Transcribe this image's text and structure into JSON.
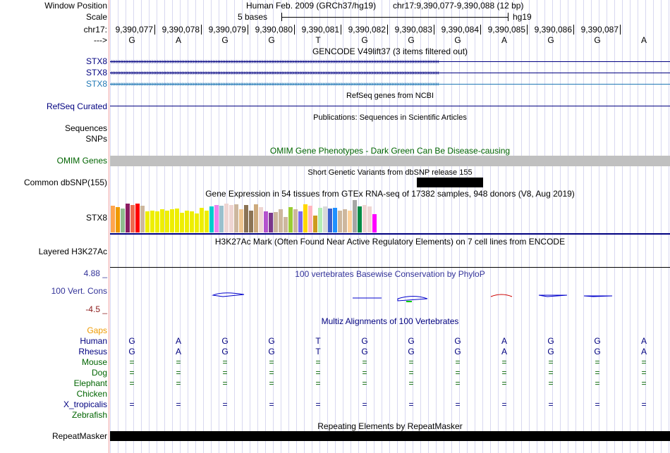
{
  "header": {
    "assembly": "Human Feb. 2009 (GRCh37/hg19)",
    "position": "chr17:9,390,077-9,390,088 (12 bp)",
    "scale_label": "5 bases",
    "scale_db": "hg19",
    "chrom": "chr17:",
    "strand": "--->"
  },
  "left_labels": {
    "window_position": "Window Position",
    "scale": "Scale",
    "stx8_a": "STX8",
    "stx8_b": "STX8",
    "stx8_c": "STX8",
    "refseq": "RefSeq Curated",
    "sequences": "Sequences",
    "snps": "SNPs",
    "omim": "OMIM Genes",
    "dbsnp": "Common dbSNP(155)",
    "gtex": "STX8",
    "h3k27ac": "Layered H3K27Ac",
    "cons": "100 Vert. Cons",
    "cons_max": "4.88 _",
    "cons_min": "-4.5 _",
    "gaps": "Gaps",
    "repeat": "RepeatMasker"
  },
  "coords": [
    "9,390,077",
    "9,390,078",
    "9,390,079",
    "9,390,080",
    "9,390,081",
    "9,390,082",
    "9,390,083",
    "9,390,084",
    "9,390,085",
    "9,390,086",
    "9,390,087"
  ],
  "bases": [
    "G",
    "A",
    "G",
    "G",
    "T",
    "G",
    "G",
    "G",
    "A",
    "G",
    "G",
    "A"
  ],
  "track_titles": {
    "gencode": "GENCODE V49lift37 (3 items filtered out)",
    "refseq": "RefSeq genes from NCBI",
    "pubs": "Publications: Sequences in Scientific Articles",
    "omim": "OMIM Gene Phenotypes - Dark Green Can Be Disease-causing",
    "dbsnp": "Short Genetic Variants from dbSNP release 155",
    "gtex": "Gene Expression in 54 tissues from GTEx RNA-seq of 17382 samples, 948 donors (V8, Aug 2019)",
    "h3k27ac": "H3K27Ac Mark (Often Found Near Active Regulatory Elements) on 7 cell lines from ENCODE",
    "cons": "100 vertebrates Basewise Conservation by PhyloP",
    "multiz": "Multiz Alignments of 100 Vertebrates",
    "repeat": "Repeating Elements by RepeatMasker"
  },
  "species": [
    {
      "name": "Human",
      "color": "#000080",
      "seq": [
        "G",
        "A",
        "G",
        "G",
        "T",
        "G",
        "G",
        "G",
        "A",
        "G",
        "G",
        "A"
      ]
    },
    {
      "name": "Rhesus",
      "color": "#000080",
      "seq": [
        "G",
        "A",
        "G",
        "G",
        "T",
        "G",
        "G",
        "G",
        "A",
        "G",
        "G",
        "A"
      ]
    },
    {
      "name": "Mouse",
      "color": "#006400",
      "seq": [
        "=",
        "=",
        "=",
        "=",
        "=",
        "=",
        "=",
        "=",
        "=",
        "=",
        "=",
        "="
      ]
    },
    {
      "name": "Dog",
      "color": "#006400",
      "seq": [
        "=",
        "=",
        "=",
        "=",
        "=",
        "=",
        "=",
        "=",
        "=",
        "=",
        "=",
        "="
      ]
    },
    {
      "name": "Elephant",
      "color": "#006400",
      "seq": [
        "=",
        "=",
        "=",
        "=",
        "=",
        "=",
        "=",
        "=",
        "=",
        "=",
        "=",
        "="
      ]
    },
    {
      "name": "Chicken",
      "color": "#006400",
      "seq": []
    },
    {
      "name": "X_tropicalis",
      "color": "#000080",
      "seq": [
        "=",
        "=",
        "=",
        "=",
        "=",
        "=",
        "=",
        "=",
        "=",
        "=",
        "=",
        "="
      ]
    },
    {
      "name": "Zebrafish",
      "color": "#006400",
      "seq": []
    }
  ],
  "gtex": {
    "heights": [
      38,
      36,
      34,
      41,
      39,
      41,
      38,
      30,
      31,
      30,
      33,
      31,
      33,
      34,
      28,
      31,
      30,
      27,
      35,
      31,
      37,
      39,
      38,
      41,
      39,
      40,
      33,
      39,
      31,
      40,
      36,
      30,
      28,
      29,
      33,
      22,
      36,
      33,
      30,
      40,
      38,
      24,
      35,
      37,
      34,
      35,
      31,
      33,
      31,
      46,
      37,
      39,
      37,
      26
    ],
    "colors": [
      "#FFA54F",
      "#EE9A00",
      "#8FBC8F",
      "#8B1C62",
      "#EE6A50",
      "#FF0000",
      "#CDB79E",
      "#EEEE00",
      "#EEEE00",
      "#EEEE00",
      "#EEEE00",
      "#EEEE00",
      "#EEEE00",
      "#EEEE00",
      "#EEEE00",
      "#EEEE00",
      "#EEEE00",
      "#EEEE00",
      "#EEEE00",
      "#EEEE00",
      "#00CDCD",
      "#EE82EE",
      "#9AC0CD",
      "#EED5D2",
      "#EED5D2",
      "#CDB79E",
      "#EEC591",
      "#8B7355",
      "#8B7355",
      "#CDAA7D",
      "#EED5D2",
      "#B452CD",
      "#7A378B",
      "#CDB79E",
      "#CDB79E",
      "#CDB79E",
      "#9ACD32",
      "#CDB79E",
      "#7B68EE",
      "#FFD700",
      "#FFB6C1",
      "#CD9B1D",
      "#B4EEB4",
      "#D9D9D9",
      "#3A5FCD",
      "#1E90FF",
      "#CDB79E",
      "#CDB79E",
      "#FFD39B",
      "#A6A6A6",
      "#008B45",
      "#EED5D2",
      "#EED5D2",
      "#FF00FF"
    ]
  },
  "colors": {
    "navy": "#000080",
    "stx8_c": "#1f77b4",
    "omim_bar": "#c0c0c0",
    "cons_pos": "#0000cc",
    "cons_neg": "#cc0000",
    "gaps": "#ee9a00"
  }
}
